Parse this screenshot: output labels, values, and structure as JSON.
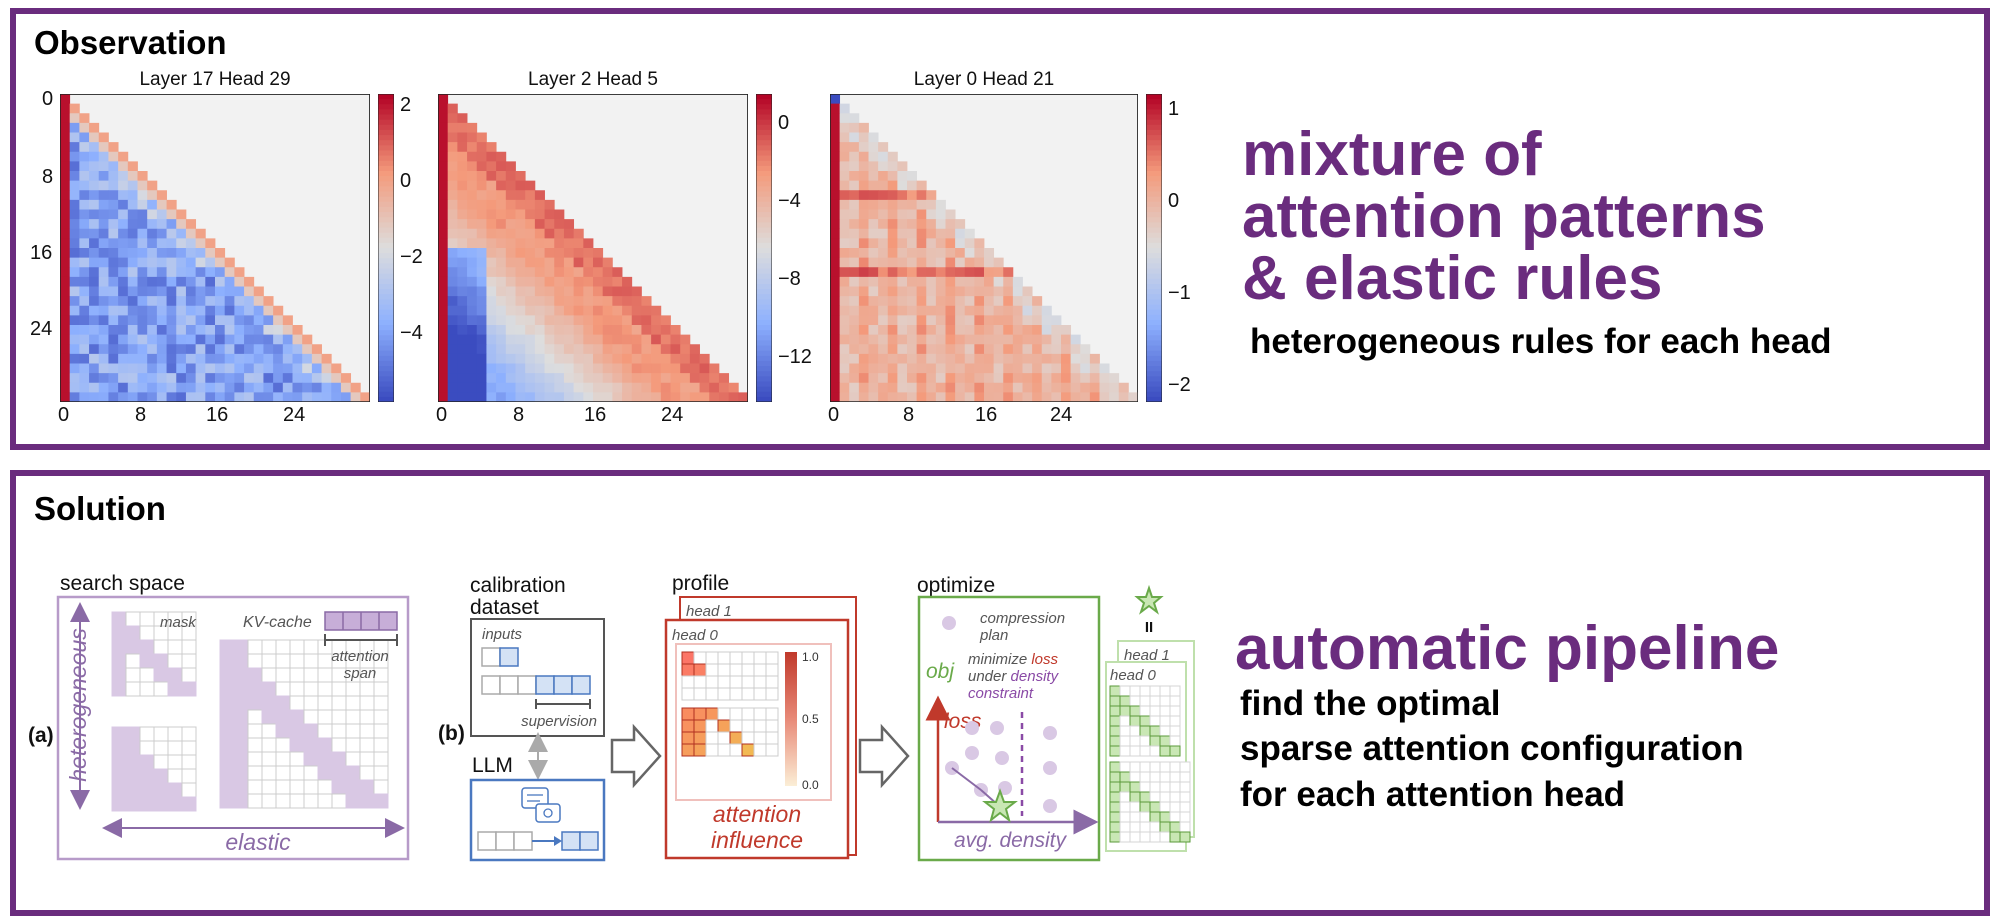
{
  "observation": {
    "title": "Observation",
    "heatmaps": [
      {
        "title": "Layer 17 Head 29",
        "cbar_ticks": [
          "2",
          "0",
          "−2",
          "−4"
        ],
        "yticks": [
          "0",
          "8",
          "16",
          "24"
        ],
        "xticks": [
          "0",
          "8",
          "16",
          "24"
        ]
      },
      {
        "title": "Layer 2 Head 5",
        "cbar_ticks": [
          "0",
          "−4",
          "−8",
          "−12"
        ],
        "xticks": [
          "0",
          "8",
          "16",
          "24"
        ]
      },
      {
        "title": "Layer 0 Head 21",
        "cbar_ticks": [
          "1",
          "0",
          "−1",
          "−2"
        ],
        "xticks": [
          "0",
          "8",
          "16",
          "24"
        ]
      }
    ],
    "headline_lines": [
      "mixture of",
      "attention patterns",
      "& elastic rules"
    ],
    "subline": "heterogeneous rules for each head"
  },
  "solution": {
    "title": "Solution",
    "search_space": {
      "label": "search space",
      "mask": "mask",
      "kv_cache": "KV-cache",
      "attention_span_lines": [
        "attention",
        "span"
      ],
      "heterogeneous": "heterogeneous",
      "elastic": "elastic",
      "tag": "(a)"
    },
    "calibration": {
      "label_lines": [
        "calibration",
        "dataset"
      ],
      "inputs": "inputs",
      "supervision": "supervision",
      "llm": "LLM",
      "tag": "(b)"
    },
    "profile": {
      "label": "profile",
      "head1": "head 1",
      "head0": "head 0",
      "cbar_ticks": [
        "1.0",
        "0.5",
        "0.0"
      ],
      "caption_lines": [
        "attention",
        "influence"
      ]
    },
    "optimize": {
      "label": "optimize",
      "plan_lines": [
        "compression",
        "plan"
      ],
      "obj": "obj",
      "obj_line1_a": "minimize ",
      "obj_line1_b": "loss",
      "obj_line2_a": "under ",
      "obj_line2_b": "density",
      "obj_line3": "constraint",
      "ylabel": "loss",
      "xlabel": "avg. density",
      "equals": "II",
      "head1": "head 1",
      "head0": "head 0"
    },
    "headline": "automatic pipeline",
    "sublines": [
      "find the optimal",
      "sparse attention configuration",
      "for each attention head"
    ]
  },
  "colors": {
    "frame": "#6a2c7e",
    "lavender": "#d9c8e4",
    "profile_red": "#c0392b",
    "green": "#6aaa4a",
    "blue": "#4a78c0",
    "gray": "#555555"
  }
}
